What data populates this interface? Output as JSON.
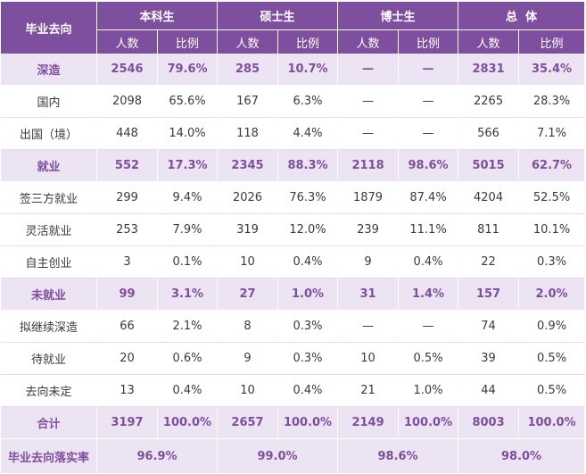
{
  "header": {
    "corner": "毕业去向",
    "groups": [
      "本科生",
      "硕士生",
      "博士生",
      "总  体"
    ],
    "sub": [
      "人数",
      "比例"
    ]
  },
  "rows": [
    {
      "label": "深造",
      "section": true,
      "cells": [
        "2546",
        "79.6%",
        "285",
        "10.7%",
        "—",
        "—",
        "2831",
        "35.4%"
      ]
    },
    {
      "label": "国内",
      "section": false,
      "cells": [
        "2098",
        "65.6%",
        "167",
        "6.3%",
        "—",
        "—",
        "2265",
        "28.3%"
      ]
    },
    {
      "label": "出国（境）",
      "section": false,
      "cells": [
        "448",
        "14.0%",
        "118",
        "4.4%",
        "—",
        "—",
        "566",
        "7.1%"
      ]
    },
    {
      "label": "就业",
      "section": true,
      "cells": [
        "552",
        "17.3%",
        "2345",
        "88.3%",
        "2118",
        "98.6%",
        "5015",
        "62.7%"
      ]
    },
    {
      "label": "签三方就业",
      "section": false,
      "cells": [
        "299",
        "9.4%",
        "2026",
        "76.3%",
        "1879",
        "87.4%",
        "4204",
        "52.5%"
      ]
    },
    {
      "label": "灵活就业",
      "section": false,
      "cells": [
        "253",
        "7.9%",
        "319",
        "12.0%",
        "239",
        "11.1%",
        "811",
        "10.1%"
      ]
    },
    {
      "label": "自主创业",
      "section": false,
      "cells": [
        "3",
        "0.1%",
        "10",
        "0.4%",
        "9",
        "0.4%",
        "22",
        "0.3%"
      ]
    },
    {
      "label": "未就业",
      "section": true,
      "cells": [
        "99",
        "3.1%",
        "27",
        "1.0%",
        "31",
        "1.4%",
        "157",
        "2.0%"
      ]
    },
    {
      "label": "拟继续深造",
      "section": false,
      "cells": [
        "66",
        "2.1%",
        "8",
        "0.3%",
        "—",
        "—",
        "74",
        "0.9%"
      ]
    },
    {
      "label": "待就业",
      "section": false,
      "cells": [
        "20",
        "0.6%",
        "9",
        "0.3%",
        "10",
        "0.5%",
        "39",
        "0.5%"
      ]
    },
    {
      "label": "去向未定",
      "section": false,
      "cells": [
        "13",
        "0.4%",
        "10",
        "0.4%",
        "21",
        "1.0%",
        "44",
        "0.5%"
      ]
    },
    {
      "label": "合计",
      "section": true,
      "cells": [
        "3197",
        "100.0%",
        "2657",
        "100.0%",
        "2149",
        "100.0%",
        "8003",
        "100.0%"
      ]
    }
  ],
  "rate_row": {
    "label": "毕业去向落实率",
    "values": [
      "96.9%",
      "99.0%",
      "98.6%",
      "98.0%"
    ]
  }
}
